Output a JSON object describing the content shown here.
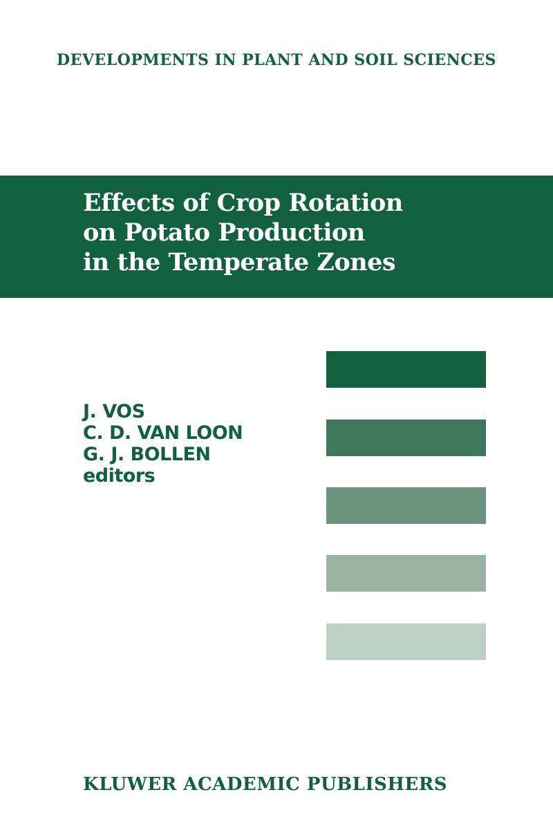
{
  "series": "DEVELOPMENTS IN PLANT AND SOIL SCIENCES",
  "title_lines": [
    "Effects of Crop Rotation",
    "on Potato Production",
    "in the Temperate Zones"
  ],
  "editors": [
    "J. VOS",
    "C. D. VAN LOON",
    "G. J. BOLLEN"
  ],
  "editors_label": "editors",
  "publisher": "KLUWER ACADEMIC PUBLISHERS",
  "colors": {
    "brand_green": "#11613f",
    "bars": [
      "#11613f",
      "#3e7759",
      "#6b937b",
      "#9bb4a2",
      "#bdd0c5"
    ]
  }
}
